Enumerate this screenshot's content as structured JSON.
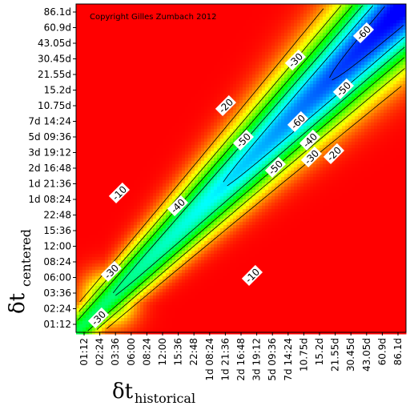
{
  "chart_data": {
    "type": "heatmap",
    "annotation": "Copyright Gilles Zumbach 2012",
    "xlabel": {
      "symbol": "δt",
      "subscript": "historical"
    },
    "ylabel": {
      "symbol": "δt",
      "subscript": "centered"
    },
    "x_ticks": [
      "01:12",
      "02:24",
      "03:36",
      "06:00",
      "08:24",
      "12:00",
      "15:36",
      "22:48",
      "1d 08:24",
      "1d 21:36",
      "2d 16:48",
      "3d 19:12",
      "5d 09:36",
      "7d 14:24",
      "10.75d",
      "15.2d",
      "21.55d",
      "30.45d",
      "43.05d",
      "60.9d",
      "86.1d"
    ],
    "y_ticks": [
      "01:12",
      "02:24",
      "03:36",
      "06:00",
      "08:24",
      "12:00",
      "15:36",
      "22:48",
      "1d 08:24",
      "1d 21:36",
      "2d 16:48",
      "3d 19:12",
      "5d 09:36",
      "7d 14:24",
      "10.75d",
      "15.2d",
      "21.55d",
      "30.45d",
      "43.05d",
      "60.9d",
      "86.1d"
    ],
    "contour_levels": [
      -10,
      -20,
      -30,
      -40,
      -50,
      -60
    ],
    "contour_labels": [
      "-60",
      "-50",
      "-30",
      "-20",
      "-50",
      "-60",
      "-50",
      "-40",
      "-30",
      "-20",
      "-10",
      "-40",
      "-30",
      "-10",
      "-30"
    ],
    "colorscale": [
      "#ff0000",
      "#ffff00",
      "#00ff00",
      "#00ffff",
      "#0000ff"
    ],
    "value_range": [
      -65,
      0
    ],
    "grid": false
  }
}
